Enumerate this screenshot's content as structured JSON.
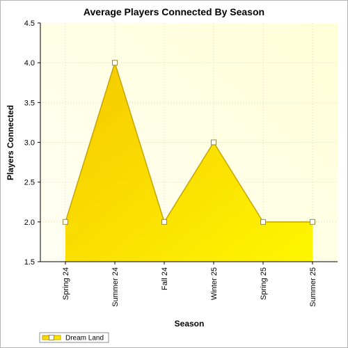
{
  "chart_data": {
    "type": "area",
    "title": "Average Players Connected By Season",
    "xlabel": "Season",
    "ylabel": "Players Connected",
    "categories": [
      "Spring 24",
      "Summer 24",
      "Fall 24",
      "Winter 25",
      "Spring 25",
      "Summer 25"
    ],
    "series": [
      {
        "name": "Dream Land",
        "values": [
          2.0,
          4.0,
          2.0,
          3.0,
          2.0,
          2.0
        ]
      }
    ],
    "ylim": [
      1.5,
      4.5
    ],
    "yticks": [
      "1.5",
      "2.0",
      "2.5",
      "3.0",
      "3.5",
      "4.0",
      "4.5"
    ],
    "grid": true,
    "legend": "bottom-left",
    "colors": {
      "fill_light": "#fff200",
      "fill_dark": "#f5d000",
      "line": "#c8a400",
      "plot_bg_light": "#fffff4",
      "plot_bg_dark": "#ffffd8",
      "grid": "#d8d8b0"
    }
  }
}
